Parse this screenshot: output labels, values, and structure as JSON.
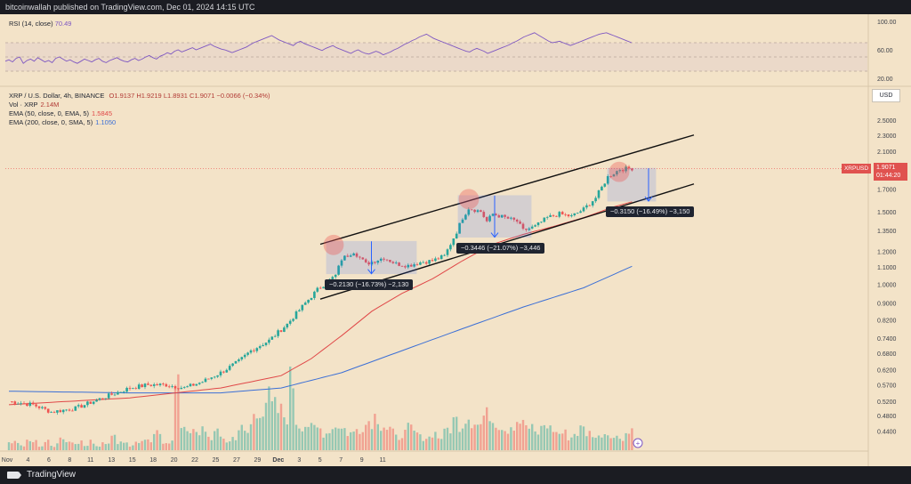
{
  "header": {
    "publisher_text": "bitcoinwallah published on TradingView.com, Dec 01, 2024 14:15 UTC"
  },
  "footer": {
    "brand": "TradingView"
  },
  "legend": {
    "symbol_line": "XRP / U.S. Dollar, 4h, BINANCE",
    "open": "O1.9137",
    "high": "H1.9219",
    "low": "L1.8931",
    "close": "C1.9071",
    "change": "−0.0066 (−0.34%)",
    "volume_label": "Vol · XRP",
    "volume_value": "2.14M",
    "ema50_label": "EMA (50, close, 0, EMA, 5)",
    "ema50_value": "1.5845",
    "ema200_label": "EMA (200, close, 0, SMA, 5)",
    "ema200_value": "1.1050"
  },
  "rsi": {
    "label": "RSI (14, close)",
    "value": "70.49",
    "axis_ticks": [
      "100.00",
      "60.00",
      "20.00"
    ],
    "values": [
      44,
      46,
      43,
      48,
      50,
      41,
      45,
      47,
      44,
      49,
      46,
      43,
      45,
      42,
      48,
      50,
      47,
      44,
      46,
      43,
      41,
      44,
      47,
      45,
      43,
      46,
      48,
      44,
      42,
      45,
      47,
      49,
      46,
      44,
      43,
      46,
      48,
      45,
      47,
      50,
      52,
      49,
      47,
      51,
      53,
      56,
      54,
      58,
      60,
      57,
      59,
      61,
      63,
      60,
      62,
      64,
      66,
      68,
      65,
      63,
      61,
      60,
      58,
      56,
      58,
      60,
      62,
      64,
      67,
      70,
      72,
      74,
      76,
      78,
      80,
      77,
      74,
      72,
      70,
      68,
      66,
      70,
      72,
      69,
      67,
      65,
      63,
      61,
      59,
      62,
      64,
      66,
      63,
      61,
      59,
      57,
      55,
      58,
      60,
      57,
      55,
      54,
      56,
      58,
      56,
      53,
      55,
      57,
      60,
      62,
      65,
      68,
      70,
      73,
      75,
      78,
      80,
      82,
      79,
      76,
      74,
      72,
      70,
      68,
      66,
      64,
      62,
      60,
      58,
      57,
      60,
      62,
      60,
      58,
      55,
      57,
      59,
      61,
      63,
      65,
      67,
      70,
      72,
      75,
      78,
      80,
      82,
      84,
      81,
      78,
      75,
      72,
      70,
      71,
      72,
      70,
      68,
      66,
      68,
      70,
      72,
      74,
      76,
      78,
      80,
      82,
      83,
      84,
      82,
      80,
      78,
      76,
      74,
      72,
      70
    ]
  },
  "chart_data": {
    "type": "candlestick",
    "symbol": "XRPUSD",
    "interval": "4h",
    "y_axis_ticks": [
      0.44,
      0.48,
      0.52,
      0.57,
      0.62,
      0.68,
      0.74,
      0.82,
      0.9,
      1.0,
      1.1,
      1.2,
      1.35,
      1.5,
      1.7,
      1.9,
      2.1,
      2.3,
      2.5
    ],
    "y_axis_log": true,
    "x_axis_ticks": [
      "Nov",
      "4",
      "6",
      "8",
      "11",
      "13",
      "15",
      "18",
      "20",
      "22",
      "25",
      "27",
      "29",
      "Dec",
      "3",
      "5",
      "7",
      "9",
      "11"
    ],
    "last_price": "1.9071",
    "countdown": "01:44:20",
    "close_anchor_points": [
      [
        0,
        0.52
      ],
      [
        8,
        0.51
      ],
      [
        14,
        0.49
      ],
      [
        22,
        0.5
      ],
      [
        28,
        0.52
      ],
      [
        34,
        0.54
      ],
      [
        40,
        0.56
      ],
      [
        46,
        0.57
      ],
      [
        52,
        0.57
      ],
      [
        58,
        0.56
      ],
      [
        64,
        0.58
      ],
      [
        70,
        0.61
      ],
      [
        76,
        0.65
      ],
      [
        80,
        0.69
      ],
      [
        86,
        0.73
      ],
      [
        92,
        0.8
      ],
      [
        98,
        0.9
      ],
      [
        102,
        0.97
      ],
      [
        108,
        1.05
      ],
      [
        110,
        1.15
      ],
      [
        114,
        1.2
      ],
      [
        118,
        1.12
      ],
      [
        124,
        1.16
      ],
      [
        128,
        1.12
      ],
      [
        132,
        1.11
      ],
      [
        136,
        1.13
      ],
      [
        140,
        1.14
      ],
      [
        144,
        1.17
      ],
      [
        148,
        1.34
      ],
      [
        150,
        1.45
      ],
      [
        152,
        1.53
      ],
      [
        156,
        1.5
      ],
      [
        158,
        1.42
      ],
      [
        160,
        1.48
      ],
      [
        164,
        1.45
      ],
      [
        168,
        1.42
      ],
      [
        170,
        1.35
      ],
      [
        174,
        1.38
      ],
      [
        178,
        1.45
      ],
      [
        182,
        1.48
      ],
      [
        186,
        1.46
      ],
      [
        190,
        1.52
      ],
      [
        194,
        1.62
      ],
      [
        198,
        1.82
      ],
      [
        202,
        1.9
      ],
      [
        206,
        1.91
      ]
    ],
    "ema50_points": [
      [
        0,
        0.51
      ],
      [
        40,
        0.53
      ],
      [
        70,
        0.56
      ],
      [
        90,
        0.6
      ],
      [
        100,
        0.66
      ],
      [
        110,
        0.75
      ],
      [
        120,
        0.86
      ],
      [
        130,
        0.95
      ],
      [
        140,
        1.03
      ],
      [
        150,
        1.14
      ],
      [
        160,
        1.25
      ],
      [
        170,
        1.32
      ],
      [
        180,
        1.38
      ],
      [
        190,
        1.45
      ],
      [
        200,
        1.54
      ],
      [
        206,
        1.5845
      ]
    ],
    "ema200_points": [
      [
        0,
        0.55
      ],
      [
        40,
        0.545
      ],
      [
        70,
        0.545
      ],
      [
        90,
        0.56
      ],
      [
        110,
        0.61
      ],
      [
        130,
        0.69
      ],
      [
        150,
        0.78
      ],
      [
        170,
        0.88
      ],
      [
        190,
        0.98
      ],
      [
        206,
        1.105
      ]
    ],
    "volume_relative": [
      2,
      2,
      1,
      2,
      2,
      1,
      2,
      1,
      2,
      3,
      2,
      2,
      2,
      1,
      2,
      1,
      2,
      2,
      3,
      2,
      2,
      1,
      2,
      2,
      2,
      3,
      4,
      2,
      2,
      14,
      6,
      5,
      4,
      3,
      5,
      3,
      4,
      3,
      2,
      3,
      5,
      4,
      6,
      8,
      10,
      12,
      10,
      9,
      8,
      16,
      7,
      6,
      6,
      5,
      5,
      4,
      5,
      6,
      5,
      4,
      4,
      5,
      6,
      7,
      8,
      6,
      5,
      4,
      3,
      4,
      5,
      4,
      3,
      3,
      4,
      3,
      4,
      5,
      7,
      6,
      8,
      7,
      6,
      8,
      9,
      7,
      6,
      5,
      6,
      7,
      6,
      5,
      4,
      5,
      6,
      5,
      4,
      4,
      3,
      4,
      5,
      4,
      4,
      3,
      4,
      4,
      3,
      3,
      4,
      5
    ],
    "channel_upper": {
      "from": [
        "Nov 16",
        1.25
      ],
      "to": [
        "Dec 3",
        2.3
      ]
    },
    "channel_lower": {
      "from": [
        "Nov 16",
        0.92
      ],
      "to": [
        "Dec 3",
        1.75
      ]
    },
    "annotations": [
      {
        "label": "−0.2130 (−16.73%) −2,130",
        "top": 1.27,
        "bottom": 1.06
      },
      {
        "label": "−0.3446 (−21.07%) −3,446",
        "top": 1.64,
        "bottom": 1.3
      },
      {
        "label": "−0.3150 (−16.49%) −3,150",
        "top": 1.91,
        "bottom": 1.59
      }
    ]
  },
  "colors": {
    "up": "#26a69a",
    "down": "#ef5350",
    "ema50": "#e04848",
    "ema200": "#3b6fd6",
    "rsi": "#7e57c2",
    "background": "#f3e3c8",
    "drawing": "#2962ff"
  }
}
